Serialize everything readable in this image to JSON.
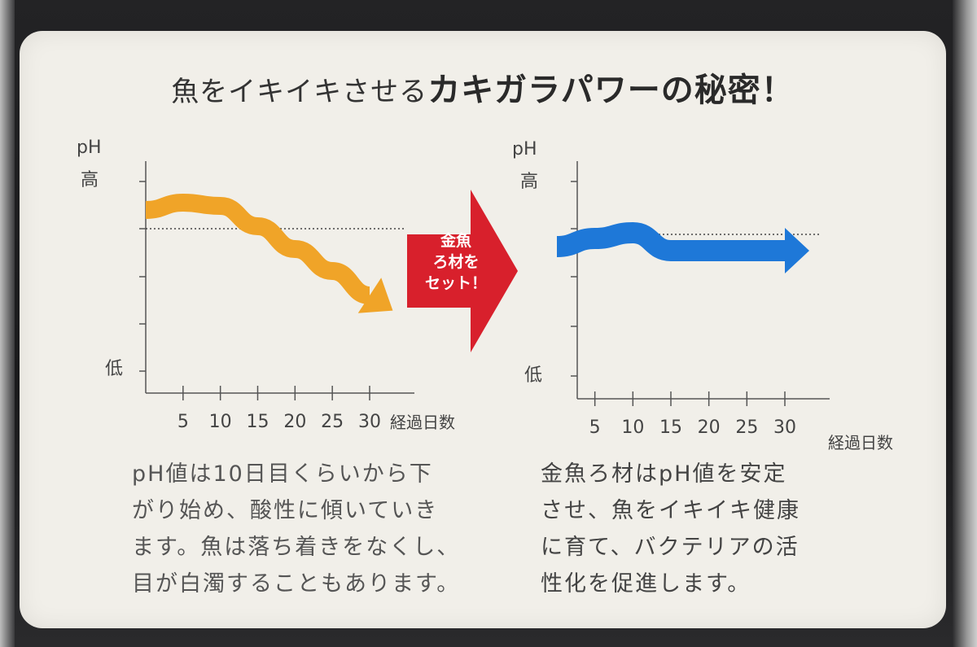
{
  "title": {
    "part1": "魚をイキイキさせる",
    "part2": "カキガラパワーの秘密",
    "part3": "！"
  },
  "badge": {
    "text": "金魚\nろ材を\nセット！",
    "color": "#d8202c"
  },
  "colors": {
    "left_curve": "#f0a428",
    "right_curve": "#1e78d8",
    "panel": "#f1efe9",
    "axis": "#555555"
  },
  "chart_data": [
    {
      "type": "line",
      "ylabel": "pH",
      "ytick_labels": {
        "high": "高",
        "low": "低"
      },
      "xlabel": "経過日数",
      "x": [
        5,
        10,
        15,
        20,
        25,
        30
      ],
      "series_curve": {
        "x": [
          0,
          5,
          10,
          15,
          20,
          25,
          30
        ],
        "y": [
          0.5,
          0.59,
          0.55,
          0.3,
          0.02,
          -0.25,
          -0.55
        ]
      }
    },
    {
      "type": "line",
      "ylabel": "pH",
      "ytick_labels": {
        "high": "高",
        "low": "低"
      },
      "xlabel": "経過日数",
      "x": [
        5,
        10,
        15,
        20,
        25,
        30
      ],
      "series_curve": {
        "x": [
          0,
          5,
          10,
          15,
          20,
          25,
          30
        ],
        "y": [
          0.35,
          0.45,
          0.52,
          0.3,
          0.3,
          0.3,
          0.3
        ]
      }
    }
  ],
  "captions": {
    "left": "pH値は10日目くらいから下\nがり始め、酸性に傾いていき\nます。魚は落ち着きをなくし、\n目が白濁することもあります。",
    "right": "金魚ろ材はpH値を安定\nさせ、魚をイキイキ健康\nに育て、バクテリアの活\n性化を促進します。"
  }
}
